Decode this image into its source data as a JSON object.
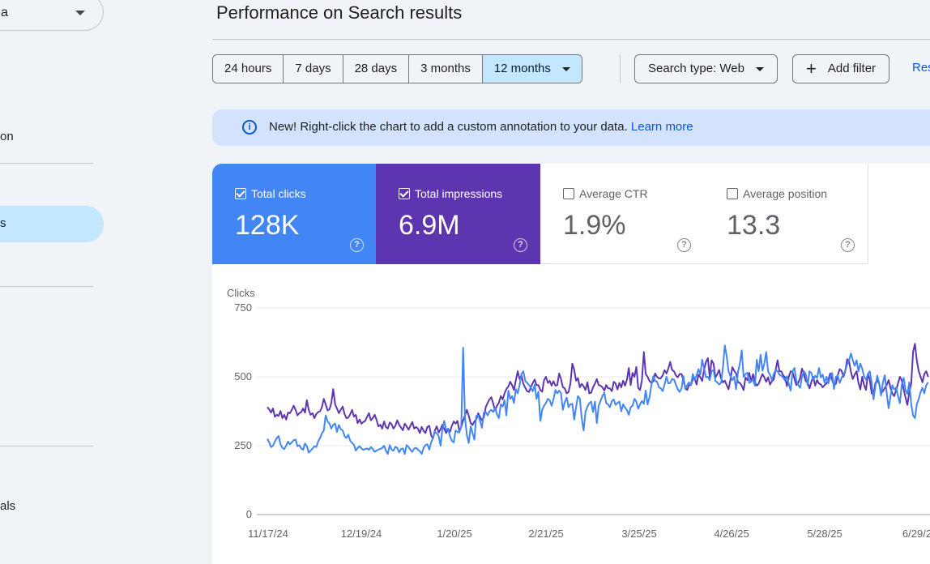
{
  "sidebar": {
    "property_label": "a",
    "items": [
      {
        "label": "on"
      },
      {
        "label": "s"
      },
      {
        "label": "als"
      }
    ]
  },
  "page": {
    "title": "Performance on Search results"
  },
  "date_range": {
    "options": [
      "24 hours",
      "7 days",
      "28 days",
      "3 months",
      "12 months"
    ],
    "selected": "12 months"
  },
  "filters": {
    "search_type": "Search type: Web",
    "add_filter": "Add filter",
    "reset": "Res"
  },
  "banner": {
    "text": "New! Right-click the chart to add a custom annotation to your data.",
    "link": "Learn more"
  },
  "metrics": [
    {
      "label": "Total clicks",
      "value": "128K",
      "checked": true,
      "color": "#4285f4"
    },
    {
      "label": "Total impressions",
      "value": "6.9M",
      "checked": true,
      "color": "#5e35b1"
    },
    {
      "label": "Average CTR",
      "value": "1.9%",
      "checked": false
    },
    {
      "label": "Average position",
      "value": "13.3",
      "checked": false
    }
  ],
  "chart_data": {
    "type": "line",
    "ylabel": "Clicks",
    "ylim": [
      0,
      750
    ],
    "yticks": [
      0,
      250,
      500,
      750
    ],
    "x_tick_labels": [
      "11/17/24",
      "12/19/24",
      "1/20/25",
      "2/21/25",
      "3/25/25",
      "4/26/25",
      "5/28/25",
      "6/29/2"
    ],
    "grid": true,
    "series": [
      {
        "name": "Total clicks",
        "color": "#4285f4",
        "values": [
          275,
          262,
          245,
          250,
          265,
          278,
          285,
          255,
          242,
          238,
          250,
          265,
          255,
          262,
          270,
          272,
          248,
          252,
          240,
          235,
          258,
          248,
          225,
          232,
          240,
          248,
          245,
          265,
          278,
          295,
          305,
          360,
          338,
          330,
          312,
          326,
          330,
          300,
          325,
          310,
          305,
          285,
          278,
          290,
          268,
          260,
          254,
          232,
          242,
          248,
          240,
          235,
          238,
          240,
          235,
          245,
          238,
          228,
          232,
          236,
          238,
          242,
          250,
          232,
          220,
          252,
          236,
          232,
          246,
          242,
          226,
          238,
          240,
          220,
          252,
          245,
          235,
          228,
          240,
          242,
          236,
          230,
          220,
          242,
          252,
          255,
          236,
          262,
          278,
          300,
          295,
          285,
          250,
          310,
          340,
          305,
          312,
          285,
          268,
          262,
          305,
          300,
          298,
          320,
          606,
          350,
          288,
          260,
          320,
          296,
          272,
          358,
          360,
          340,
          315,
          370,
          372,
          360,
          375,
          380,
          372,
          388,
          364,
          350,
          400,
          392,
          415,
          360,
          450,
          420,
          430,
          405,
          455,
          440,
          470,
          510,
          520,
          485,
          478,
          470,
          460,
          448,
          472,
          420,
          446,
          340,
          380,
          395,
          405,
          420,
          415,
          395,
          418,
          452,
          440,
          450,
          440,
          380,
          408,
          425,
          390,
          400,
          402,
          345,
          390,
          430,
          420,
          350,
          305,
          372,
          392,
          404,
          410,
          372,
          410,
          332,
          395,
          412,
          430,
          442,
          404,
          400,
          390,
          412,
          418,
          398,
          405,
          410,
          375,
          400,
          388,
          380,
          362,
          390,
          395,
          420,
          410,
          384,
          400,
          412,
          402,
          450,
          400,
          425,
          470,
          502,
          485,
          482,
          462,
          458,
          448,
          472,
          500,
          476,
          478,
          492,
          490,
          472,
          455,
          445,
          458,
          502,
          456,
          470,
          480,
          470,
          510,
          488,
          505,
          528,
          508,
          562,
          530,
          498,
          500,
          488,
          520,
          525,
          485,
          480,
          472,
          478,
          534,
          614,
          575,
          520,
          502,
          488,
          500,
          455,
          518,
          548,
          596,
          500,
          510,
          515,
          478,
          485,
          488,
          468,
          562,
          520,
          580,
          522,
          548,
          590,
          520,
          508,
          488,
          510,
          525,
          520,
          508,
          504,
          498,
          486,
          502,
          474,
          450,
          520,
          532,
          486,
          470,
          460,
          500,
          520,
          510,
          470,
          520,
          514,
          488,
          504,
          496,
          532,
          498,
          508,
          478,
          500,
          476,
          500,
          514,
          456,
          500,
          504,
          478,
          496,
          508,
          522,
          546,
          560,
          585,
          560,
          540,
          560,
          520,
          548,
          530,
          500,
          490,
          510,
          520,
          480,
          418,
          466,
          504,
          476,
          432,
          480,
          506,
          440,
          386,
          428,
          470,
          454,
          460,
          430,
          404,
          470,
          496,
          452,
          438,
          480,
          402,
          360,
          350,
          400,
          420,
          445,
          460,
          440,
          470,
          480
        ]
      },
      {
        "name": "Total impressions",
        "color": "#5e35b1",
        "values": [
          390,
          382,
          370,
          385,
          355,
          362,
          358,
          376,
          350,
          362,
          345,
          370,
          368,
          380,
          395,
          380,
          360,
          368,
          372,
          385,
          370,
          415,
          380,
          362,
          368,
          350,
          365,
          372,
          375,
          390,
          420,
          400,
          378,
          382,
          405,
          455,
          400,
          385,
          368,
          380,
          392,
          365,
          350,
          352,
          364,
          380,
          356,
          362,
          332,
          345,
          330,
          336,
          340,
          355,
          368,
          342,
          350,
          362,
          344,
          320,
          326,
          312,
          338,
          318,
          312,
          334,
          328,
          312,
          322,
          342,
          326,
          316,
          306,
          330,
          320,
          308,
          322,
          336,
          312,
          318,
          312,
          296,
          318,
          304,
          296,
          318,
          322,
          288,
          276,
          305,
          320,
          298,
          310,
          326,
          310,
          296,
          312,
          300,
          322,
          338,
          330,
          340,
          304,
          318,
          342,
          360,
          380,
          358,
          332,
          325,
          338,
          346,
          368,
          354,
          342,
          352,
          390,
          405,
          418,
          426,
          402,
          378,
          395,
          406,
          430,
          418,
          440,
          456,
          465,
          482,
          470,
          452,
          488,
          520,
          492,
          505,
          475,
          460,
          448,
          445,
          462,
          478,
          490,
          470,
          470,
          452,
          446,
          488,
          500,
          478,
          485,
          468,
          484,
          468,
          470,
          512,
          492,
          462,
          458,
          440,
          445,
          475,
          548,
          525,
          486,
          495,
          462,
          474,
          466,
          452,
          480,
          440,
          442,
          462,
          475,
          492,
          470,
          468,
          462,
          450,
          470,
          458,
          458,
          448,
          482,
          476,
          454,
          478,
          462,
          486,
          468,
          490,
          532,
          470,
          514,
          500,
          536,
          460,
          452,
          488,
          590,
          510,
          500,
          485,
          478,
          484,
          512,
          500,
          494,
          495,
          505,
          524,
          512,
          530,
          554,
          525,
          520,
          505,
          498,
          510,
          510,
          488,
          462,
          452,
          470,
          470,
          492,
          495,
          472,
          508,
          498,
          485,
          526,
          554,
          568,
          498,
          560,
          548,
          498,
          510,
          525,
          494,
          480,
          486,
          470,
          455,
          490,
          535,
          522,
          512,
          480,
          478,
          468,
          452,
          498,
          488,
          514,
          482,
          510,
          480,
          468,
          475,
          494,
          510,
          498,
          482,
          498,
          472,
          484,
          490,
          524,
          560,
          520,
          520,
          506,
          498,
          466,
          500,
          520,
          518,
          492,
          470,
          478,
          496,
          530,
          510,
          484,
          480,
          458,
          482,
          500,
          468,
          488,
          476,
          472,
          462,
          470,
          476,
          490,
          512,
          488,
          470,
          474,
          505,
          528,
          522,
          500,
          520,
          564,
          556,
          518,
          492,
          508,
          520,
          478,
          454,
          500,
          470,
          452,
          510,
          490,
          440,
          436,
          478,
          486,
          475,
          440,
          448,
          460,
          470,
          488,
          460,
          440,
          430,
          452,
          476,
          500,
          488,
          454,
          424,
          398,
          444,
          475,
          590,
          620,
          560,
          520,
          500,
          480,
          510,
          520,
          500
        ]
      }
    ]
  }
}
